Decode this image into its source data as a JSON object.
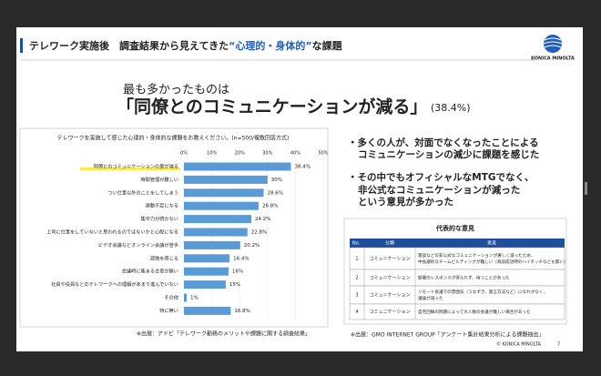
{
  "header": {
    "title_parts": [
      "テレワーク実施後　調査結果から見えてきた",
      "“心理的・身体的”",
      "な課題"
    ],
    "logo": "KONICA MINOLTA"
  },
  "headline": {
    "lead": "最も多かったものは",
    "main": "「同僚とのコミュニケーションが減る」",
    "figure": "(38.4%)"
  },
  "chart_data": {
    "type": "barh",
    "title": "テレワークを実施して感じた心理的・身体的な課題をお教えください。(n=500/複数回答方式)",
    "categories": [
      "同僚とのコミュニケーションの量が減る",
      "時間管理が難しい",
      "つい仕事以外のことをしてしまう",
      "運動不足になる",
      "集中力が続かない",
      "上司に仕事をしていないと思われるのではないかと心配になる",
      "ビデオ会議などオンライン会議が苦手",
      "孤独を感じる",
      "会議時に集まる合意が無い",
      "社員や役員などのテレワークへの理解があまり進んでいない",
      "その他",
      "特に無い"
    ],
    "values": [
      38.4,
      30,
      28.6,
      26.8,
      24.2,
      22.8,
      20.2,
      16.4,
      16,
      15,
      1,
      16.8
    ],
    "value_labels": [
      "38.4%",
      "30%",
      "28.6%",
      "26.8%",
      "24.2%",
      "22.8%",
      "20.2%",
      "16.4%",
      "16%",
      "15%",
      "1%",
      "16.8%"
    ],
    "color": "#5b9bd5",
    "xlim": [
      0,
      50
    ],
    "xticks": [
      {
        "value": 0,
        "label": "0%"
      },
      {
        "value": 10,
        "label": "10%"
      },
      {
        "value": 20,
        "label": "20%"
      },
      {
        "value": 30,
        "label": "30%"
      },
      {
        "value": 40,
        "label": "40%"
      },
      {
        "value": 50,
        "label": "50%"
      }
    ],
    "grid": true
  },
  "bullets": [
    [
      "・多くの人が、対面でなくなったことによる",
      "コミュニケーションの減少に課題を感じた"
    ],
    [
      "・その中でもオフィシャルなMTGでなく、",
      "非公式なコミュニケーションが減った",
      "という意見が多かった"
    ]
  ],
  "table": {
    "title": "代表的な意見",
    "header": [
      "No.",
      "分類",
      "意見"
    ],
    "rows": [
      [
        "1",
        "コミュニケーション",
        [
          "雑談などの非公式なコミュニケーションが著しく減ったため、",
          "中長期的なチームビルディングが難しい（商談成功時のハイタッチなども無い）"
        ]
      ],
      [
        "2",
        "コミュニケーション",
        [
          "部署のレスポンスが得られず、待つことがあった"
        ]
      ],
      [
        "3",
        "コミュニケーション",
        [
          "リモート会議での雰囲気（うなずき、発言方法など）になれがなく、",
          "議論が減った"
        ]
      ],
      [
        "4",
        "コミュニケーション",
        [
          "自宅回線の問題によって大人数の会議が難しい場合があった"
        ]
      ]
    ]
  },
  "footer": {
    "source_left": "※出展：アドビ「テレワーク勤務のメリットや課題に関する調査結果」",
    "source_right": "※出展：GMO INTERNET GROUP「アンケート集計結果分析による課題抽出」",
    "copyright": "© KONICA MINOLTA",
    "page": "7"
  }
}
